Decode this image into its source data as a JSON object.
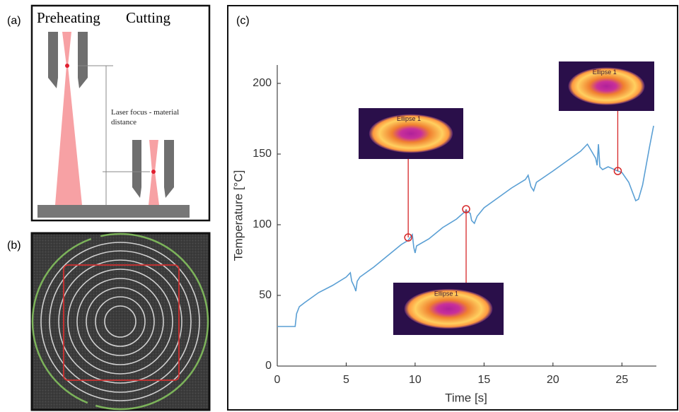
{
  "panels": {
    "a": {
      "label": "(a)",
      "preheating": "Preheating",
      "cutting": "Cutting",
      "distance_label": "Laser focus - material distance"
    },
    "b": {
      "label": "(b)"
    },
    "c": {
      "label": "(c)"
    }
  },
  "chart_data": {
    "type": "line",
    "xlabel": "Time [s]",
    "ylabel": "Temperature [°C]",
    "color": "#5a9fd4",
    "x": [
      0,
      1.3,
      1.4,
      1.6,
      2,
      3,
      4,
      5,
      5.3,
      5.4,
      5.6,
      5.7,
      5.8,
      6,
      7,
      8,
      9,
      9.5,
      9.8,
      9.9,
      10,
      10.1,
      11,
      12,
      13,
      13.7,
      14,
      14.1,
      14.3,
      14.5,
      15,
      16,
      17,
      18,
      18.2,
      18.4,
      18.6,
      18.8,
      20,
      21,
      22,
      22.5,
      22.8,
      23.1,
      23.2,
      23.3,
      23.4,
      23.6,
      24,
      24.7,
      25,
      25.5,
      26,
      26.2,
      26.5,
      27,
      27.3
    ],
    "values": [
      28,
      28,
      37,
      42,
      45,
      52,
      57,
      63,
      66,
      60,
      56,
      53,
      60,
      63,
      70,
      78,
      86,
      89,
      93,
      84,
      80,
      85,
      90,
      98,
      104,
      110,
      108,
      103,
      101,
      106,
      112,
      119,
      126,
      132,
      135,
      127,
      124,
      130,
      138,
      145,
      152,
      157,
      152,
      147,
      142,
      157,
      141,
      139,
      141,
      138,
      137,
      130,
      117,
      118,
      128,
      155,
      170
    ],
    "xlim": [
      0,
      27.5
    ],
    "ylim": [
      0,
      213
    ],
    "xticks": [
      0,
      5,
      10,
      15,
      20,
      25
    ],
    "yticks": [
      0,
      50,
      100,
      150,
      200
    ],
    "annotations": [
      {
        "x": 9.5,
        "y": 91,
        "label": "Ellipse 1"
      },
      {
        "x": 13.7,
        "y": 111,
        "label": "Ellipse 1"
      },
      {
        "x": 24.7,
        "y": 138,
        "label": "Ellipse 1"
      }
    ],
    "annotation_color": "#d62728"
  }
}
